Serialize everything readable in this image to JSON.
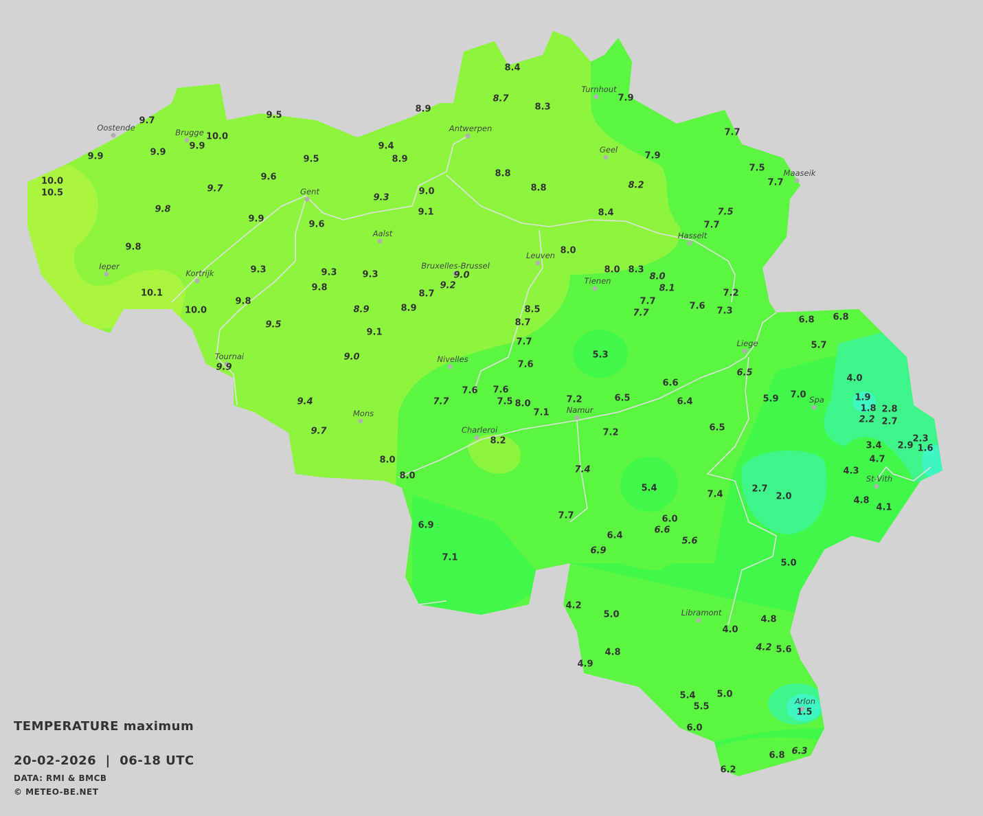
{
  "map": {
    "background_color": "#d3d3d3",
    "color_scale": [
      "#3ff5c0",
      "#3ff58a",
      "#41f74a",
      "#5cf542",
      "#8ef53f",
      "#a9f53f"
    ],
    "cities": [
      "Oostende",
      "Brugge",
      "Gent",
      "Antwerpen",
      "Turnhout",
      "Geel",
      "Maaseik",
      "Hasselt",
      "Leuven",
      "Tienen",
      "Bruxelles-Brussel",
      "Aalst",
      "Ieper",
      "Kortrijk",
      "Tournai",
      "Nivelles",
      "Mons",
      "Charleroi",
      "Namur",
      "Liege",
      "Spa",
      "St-Vith",
      "Libramont",
      "Arlon"
    ],
    "values": [
      "8.7",
      "9.7",
      "9.8",
      "9.3",
      "9.0",
      "9.2",
      "8.9",
      "9.5",
      "9.0",
      "9.9",
      "9.4",
      "9.7",
      "7.7",
      "8.2",
      "7.5",
      "8.0",
      "8.1",
      "7.7",
      "6.5",
      "2.2",
      "7.4",
      "6.6",
      "5.6",
      "6.9",
      "4.2",
      "6.3",
      "8.4",
      "8.3",
      "7.9",
      "8.9",
      "9.7",
      "9.5",
      "10.0",
      "9.9",
      "9.9",
      "9.9",
      "9.4",
      "8.9",
      "9.5",
      "7.7",
      "7.9",
      "7.5",
      "7.7",
      "8.8",
      "8.8",
      "9.6",
      "10.0",
      "10.5",
      "9.0",
      "9.1",
      "8.4",
      "9.9",
      "9.6",
      "7.7",
      "9.8",
      "8.0",
      "9.3",
      "9.3",
      "9.3",
      "8.0",
      "8.3",
      "9.8",
      "8.7",
      "10.1",
      "7.2",
      "7.7",
      "9.8",
      "8.5",
      "10.0",
      "8.9",
      "7.6",
      "7.3",
      "8.7",
      "6.8",
      "6.8",
      "9.1",
      "7.7",
      "5.7",
      "5.3",
      "7.6",
      "4.0",
      "6.6",
      "7.6",
      "7.6",
      "5.9",
      "7.0",
      "6.5",
      "6.4",
      "1.9",
      "7.5",
      "8.0",
      "7.2",
      "1.8",
      "2.8",
      "7.1",
      "2.7",
      "6.5",
      "7.2",
      "8.2",
      "2.3",
      "3.4",
      "2.9",
      "1.6",
      "8.0",
      "4.7",
      "4.3",
      "8.0",
      "2.7",
      "5.4",
      "7.4",
      "2.0",
      "4.8",
      "4.1",
      "7.7",
      "6.0",
      "6.9",
      "6.4",
      "7.1",
      "5.0",
      "4.2",
      "5.0",
      "4.8",
      "4.0",
      "5.6",
      "4.8",
      "4.9",
      "5.4",
      "5.0",
      "5.5",
      "1.5",
      "6.0",
      "6.8",
      "6.2"
    ],
    "italic_value_count": 26
  },
  "legend": {
    "title": "TEMPERATURE",
    "subtitle": "maximum",
    "period": "20-02-2026  |  06-18 UTC",
    "source": "DATA: RMI & BMCB",
    "copyright": "© METEO-BE.NET"
  }
}
